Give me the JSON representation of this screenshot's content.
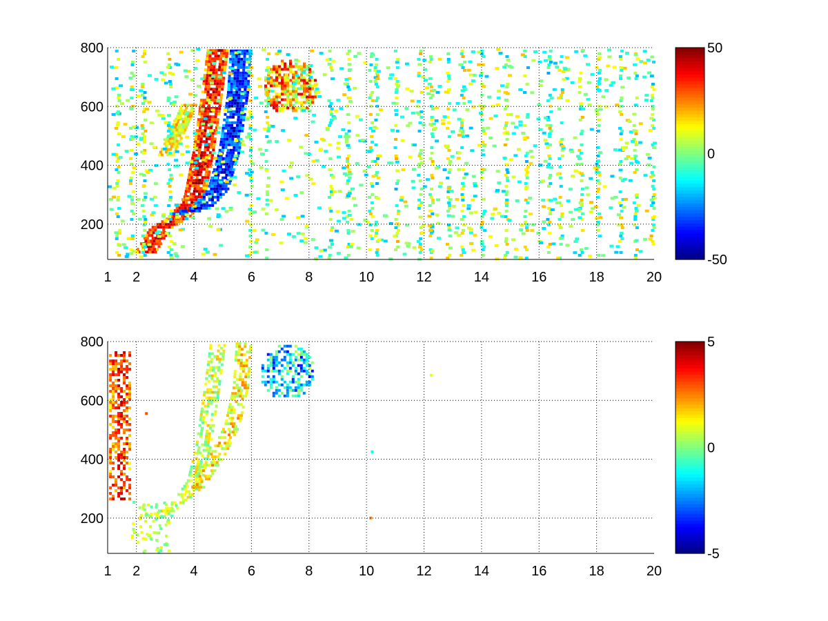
{
  "figure": {
    "background": "#ffffff"
  },
  "chart_data": [
    {
      "type": "heatmap",
      "title": "",
      "xlabel": "",
      "ylabel": "",
      "xlim": [
        1,
        20
      ],
      "ylim": [
        80,
        800
      ],
      "x_ticks": [
        1,
        2,
        4,
        6,
        8,
        10,
        12,
        14,
        16,
        18,
        20
      ],
      "y_ticks": [
        200,
        400,
        600,
        800
      ],
      "grid": true,
      "colormap": "jet",
      "clim": [
        -50,
        50
      ],
      "colorbar_ticks": [
        -50,
        0,
        50
      ],
      "features": [
        {
          "name": "",
          "description": "",
          "center_line": [
            [
              2.3,
              110
            ],
            [
              2.8,
              190
            ],
            [
              3.5,
              230
            ],
            [
              4.0,
              300
            ],
            [
              4.3,
              450
            ],
            [
              4.6,
              650
            ],
            [
              4.8,
              800
            ]
          ],
          "value": 40
        },
        {
          "name": "",
          "center_line": [
            [
              3.5,
              240
            ],
            [
              4.2,
              260
            ],
            [
              4.8,
              320
            ],
            [
              5.2,
              450
            ],
            [
              5.5,
              650
            ],
            [
              5.6,
              800
            ]
          ],
          "value": -38
        },
        {
          "name": "",
          "center_line": [
            [
              3.0,
              440
            ],
            [
              3.4,
              520
            ],
            [
              3.8,
              610
            ]
          ],
          "value": 15
        },
        {
          "name": "",
          "center": [
            7.3,
            670
          ],
          "value": 20
        }
      ],
      "noise_columns_x": [
        1.3,
        1.8,
        2.2,
        3.1,
        5.9,
        6.5,
        8.7,
        9.3,
        10.1,
        10.3,
        11.0,
        11.8,
        12.2,
        12.8,
        13.3,
        14.0,
        14.8,
        15.5,
        16.3,
        16.7,
        17.4,
        18.0,
        18.8,
        19.3,
        19.9
      ]
    },
    {
      "type": "heatmap",
      "title": "",
      "xlabel": "",
      "ylabel": "",
      "xlim": [
        1,
        20
      ],
      "ylim": [
        80,
        800
      ],
      "x_ticks": [
        1,
        2,
        4,
        6,
        8,
        10,
        12,
        14,
        16,
        18,
        20
      ],
      "y_ticks": [
        200,
        400,
        600,
        800
      ],
      "grid": true,
      "colormap": "jet",
      "clim": [
        -5,
        5
      ],
      "colorbar_ticks": [
        -5,
        0,
        5
      ],
      "features": [
        {
          "name": "",
          "center_line": [
            [
              2.7,
              210
            ],
            [
              3.5,
              260
            ],
            [
              4.0,
              330
            ],
            [
              4.3,
              450
            ],
            [
              4.6,
              650
            ],
            [
              4.8,
              800
            ]
          ],
          "value": 0.8
        },
        {
          "name": "",
          "center_line": [
            [
              4.0,
              300
            ],
            [
              4.8,
              420
            ],
            [
              5.3,
              520
            ],
            [
              5.6,
              650
            ],
            [
              5.7,
              800
            ]
          ],
          "value": 1.5
        },
        {
          "name": "",
          "center": [
            7.2,
            700
          ],
          "value": -1.5
        },
        {
          "name": "",
          "center_line": [
            [
              1.4,
              270
            ],
            [
              1.4,
              770
            ]
          ],
          "value": 3.5
        }
      ]
    }
  ]
}
